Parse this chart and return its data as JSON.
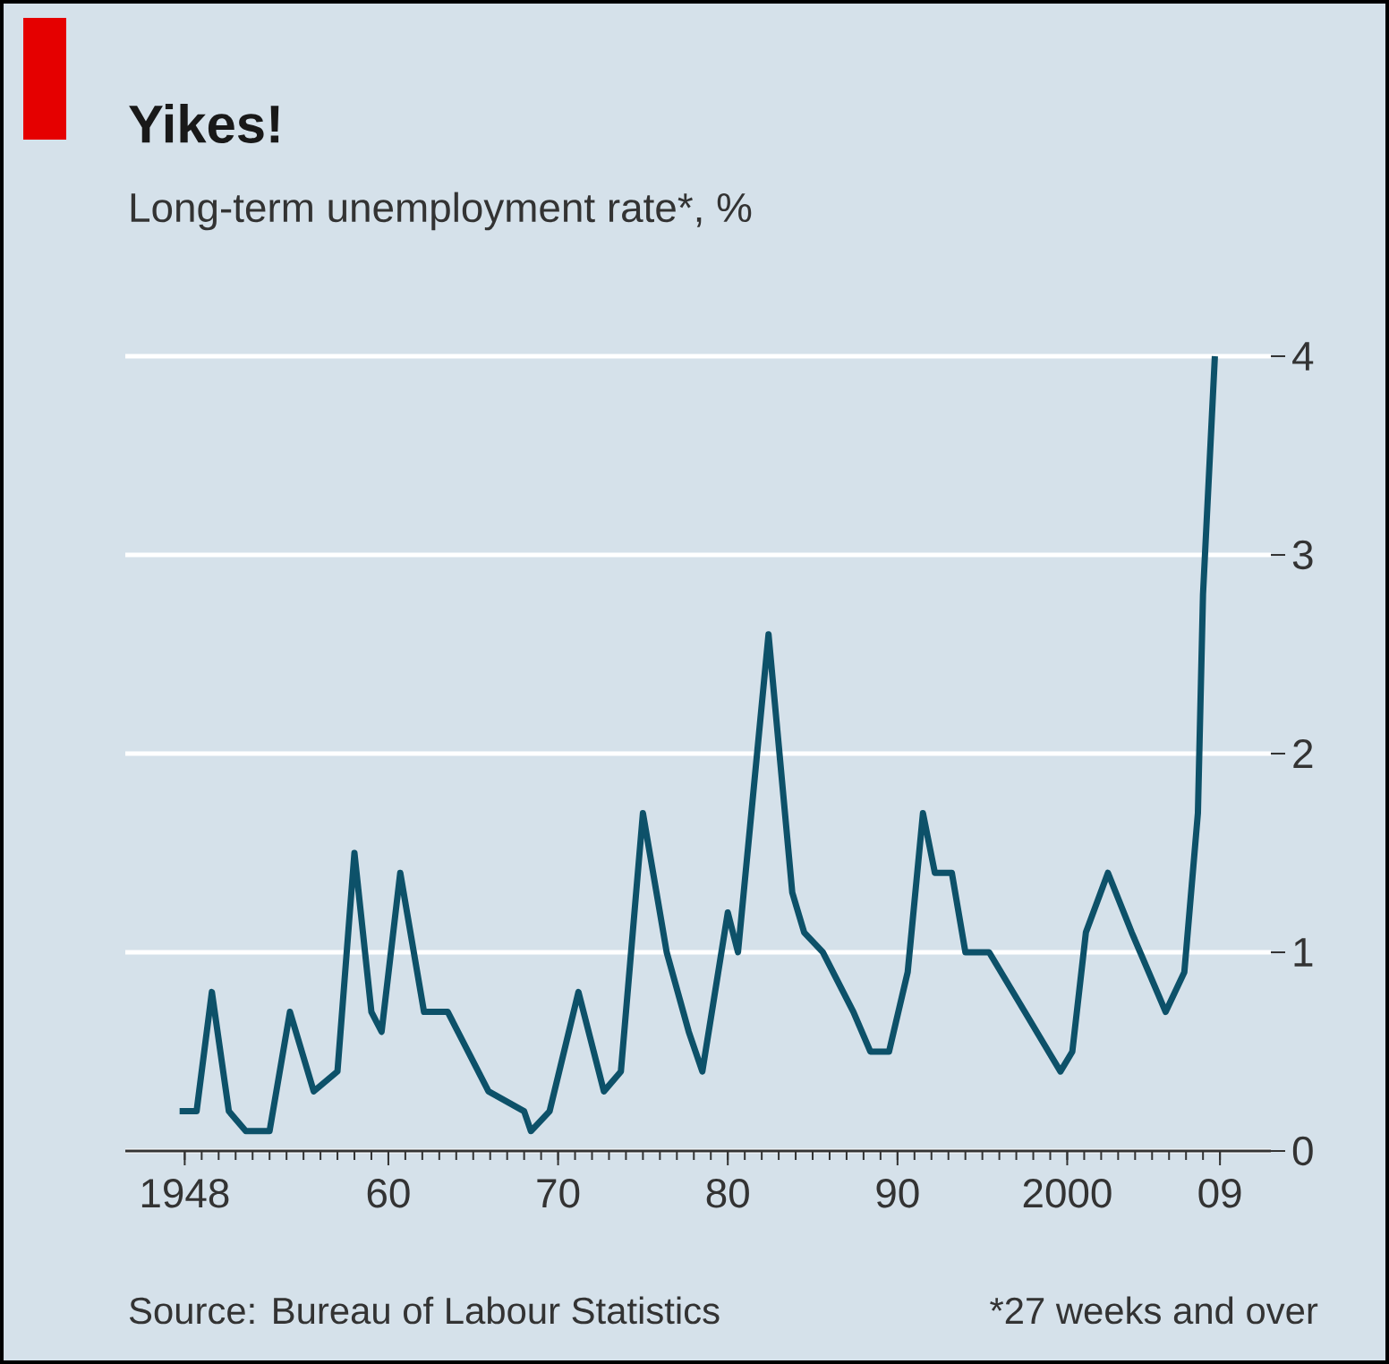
{
  "chart_data": {
    "type": "line",
    "title": "Yikes!",
    "subtitle": "Long-term unemployment rate*, %",
    "annotations": [
      "Source: Bureau of Labour Statistics",
      "*27 weeks and over"
    ],
    "color": "#0d5169",
    "x": [
      1947.7,
      1948.7,
      1949.6,
      1950.6,
      1951.6,
      1953.0,
      1954.2,
      1955.6,
      1957.0,
      1958.0,
      1959.0,
      1959.6,
      1960.7,
      1962.1,
      1963.5,
      1965.9,
      1968.0,
      1968.4,
      1969.5,
      1971.2,
      1972.7,
      1973.7,
      1975.0,
      1975.8,
      1976.4,
      1977.7,
      1978.5,
      1980.0,
      1980.6,
      1982.4,
      1983.8,
      1984.5,
      1985.6,
      1987.4,
      1988.4,
      1989.5,
      1990.6,
      1991.5,
      1992.2,
      1993.2,
      1994.0,
      1995.4,
      1997.5,
      1998.9,
      1999.6,
      2000.3,
      2001.1,
      2002.4,
      2003.8,
      2004.8,
      2005.8,
      2006.9,
      2007.7,
      2008.0,
      2008.7
    ],
    "values": [
      0.2,
      0.2,
      0.8,
      0.2,
      0.1,
      0.1,
      0.7,
      0.3,
      0.4,
      1.5,
      0.7,
      0.6,
      1.4,
      0.7,
      0.7,
      0.3,
      0.2,
      0.1,
      0.2,
      0.8,
      0.3,
      0.4,
      1.7,
      1.3,
      1.0,
      0.6,
      0.4,
      1.2,
      1.0,
      2.6,
      1.3,
      1.1,
      1.0,
      0.7,
      0.5,
      0.5,
      0.9,
      1.7,
      1.4,
      1.4,
      1.0,
      1.0,
      0.7,
      0.5,
      0.4,
      0.5,
      1.1,
      1.4,
      1.1,
      0.9,
      0.7,
      0.9,
      1.7,
      2.8,
      4.0
    ],
    "xlim": [
      1944.5,
      2012
    ],
    "ylim": [
      0,
      4
    ],
    "xticks": [
      {
        "value": 1948,
        "label": "1948"
      },
      {
        "value": 1960,
        "label": "60"
      },
      {
        "value": 1970,
        "label": "70"
      },
      {
        "value": 1980,
        "label": "80"
      },
      {
        "value": 1990,
        "label": "90"
      },
      {
        "value": 2000,
        "label": "2000"
      },
      {
        "value": 2009,
        "label": "09"
      }
    ],
    "yticks": [
      0,
      1,
      2,
      3,
      4
    ],
    "grid": "y"
  }
}
